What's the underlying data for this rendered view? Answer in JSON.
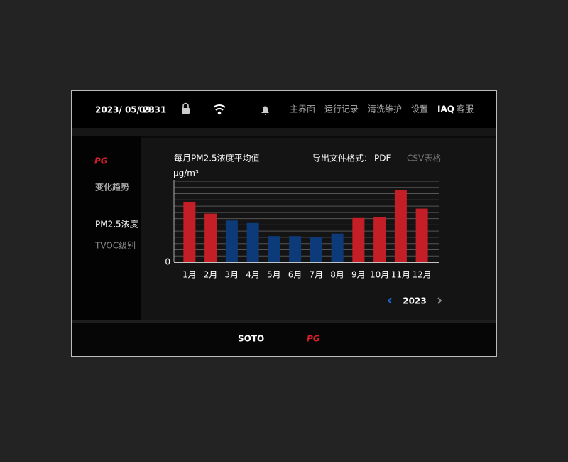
{
  "header": {
    "date": "2023/ 05/ 23",
    "time": "09:31",
    "nav": [
      "主界面",
      "运行记录",
      "清洗维护",
      "设置",
      "IAQ",
      "客服"
    ]
  },
  "sidebar": {
    "logo": "PG",
    "title": "变化趋势",
    "items": [
      "PM2.5浓度",
      "TVOC级别"
    ]
  },
  "export": {
    "label": "导出文件格式：",
    "options": [
      "PDF",
      "CSV表格"
    ]
  },
  "chart_data": {
    "type": "bar",
    "title": "每月PM2.5浓度平均值",
    "y_label": "μg/m³",
    "categories": [
      "1月",
      "2月",
      "3月",
      "4月",
      "5月",
      "6月",
      "7月",
      "8月",
      "9月",
      "10月",
      "11月",
      "12月"
    ],
    "values": [
      9.7,
      7.8,
      6.7,
      6.3,
      4.2,
      4.2,
      4.0,
      4.6,
      7.1,
      7.3,
      11.6,
      8.6
    ],
    "colors": [
      "#c41e26",
      "#c41e26",
      "#0d3a78",
      "#0d3a78",
      "#0d3a78",
      "#0d3a78",
      "#0d3a78",
      "#0d3a78",
      "#c41e26",
      "#c41e26",
      "#c41e26",
      "#c41e26"
    ],
    "ylim": [
      0,
      13
    ],
    "yticks": [
      0
    ],
    "grid": true
  },
  "pager": {
    "year": "2023"
  },
  "footer": {
    "brand": "SOTO",
    "logo": "PG"
  }
}
